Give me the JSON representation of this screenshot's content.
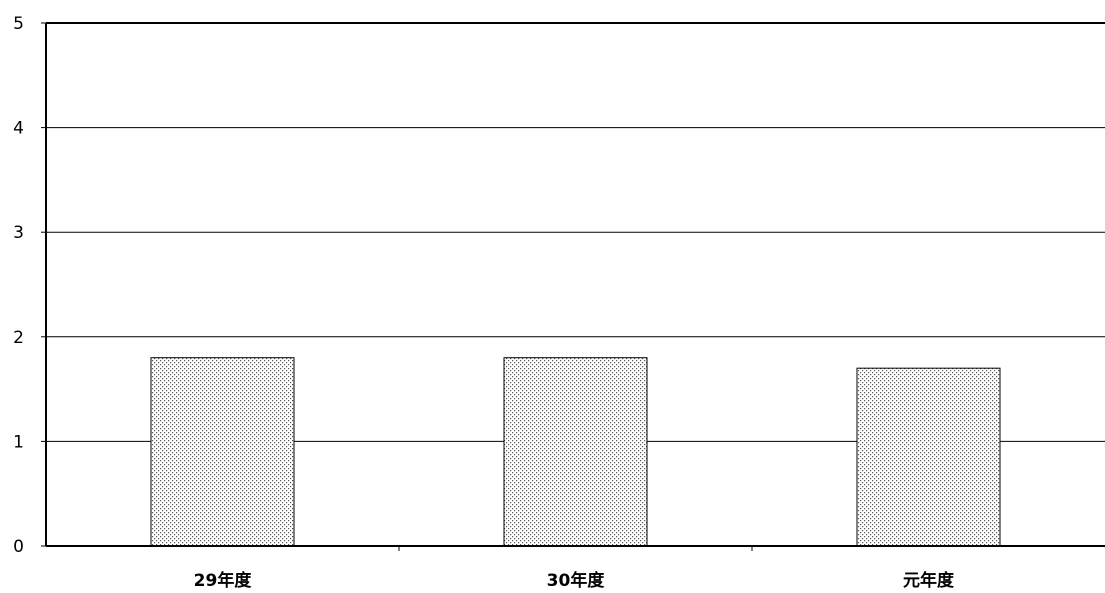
{
  "chart_data": {
    "type": "bar",
    "title": "",
    "xlabel": "",
    "ylabel": "",
    "categories": [
      "29年度",
      "30年度",
      "元年度"
    ],
    "values": [
      1.8,
      1.8,
      1.7
    ],
    "ylim": [
      0,
      5
    ],
    "yticks": [
      "0",
      "1",
      "2",
      "3",
      "4",
      "5"
    ],
    "grid": true,
    "legend": "none",
    "colors": {
      "bar_fill": "#ffffff",
      "bar_pattern": "#555555",
      "axis": "#000000",
      "grid": "#000000"
    }
  }
}
